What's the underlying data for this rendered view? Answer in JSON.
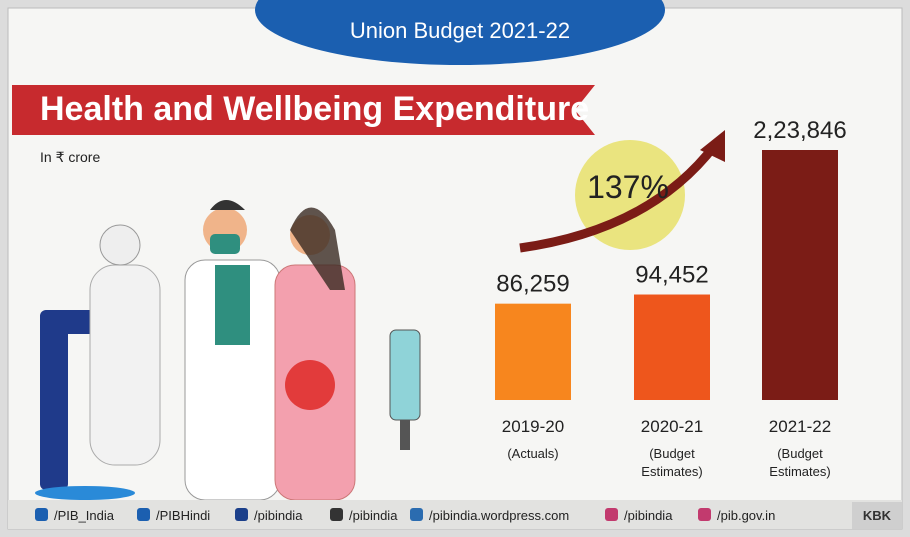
{
  "chart_data": {
    "type": "bar",
    "header": "Union Budget 2021-22",
    "title": "Health and Wellbeing Expenditure",
    "subtitle": "In ₹ crore",
    "annotation": "137%",
    "categories": [
      "2019-20",
      "2020-21",
      "2021-22"
    ],
    "category_notes": [
      "(Actuals)",
      "(Budget Estimates)",
      "(Budget Estimates)"
    ],
    "values": [
      86259,
      94452,
      223846
    ],
    "value_labels": [
      "86,259",
      "94,452",
      "2,23,846"
    ],
    "colors": [
      "#f7861e",
      "#ee561c",
      "#7b1c16"
    ]
  },
  "footer": {
    "links": [
      "/PIB_India",
      "/PIBHindi",
      "/pibindia",
      "/pibindia",
      "/pibindia.wordpress.com",
      "/pibindia",
      "/pib.gov.in"
    ],
    "credit": "KBK"
  }
}
